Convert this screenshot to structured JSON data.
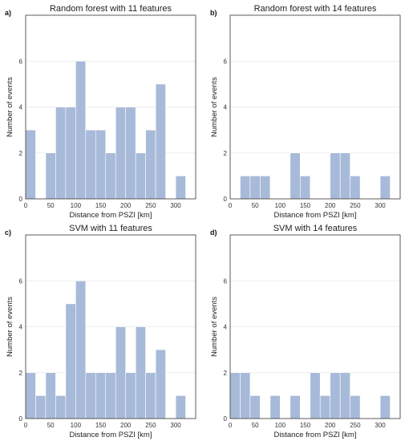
{
  "chart_data": [
    {
      "type": "bar",
      "panel_label": "a)",
      "title": "Random forest with 11 features",
      "xlabel": "Distance from PSZI [km]",
      "ylabel": "Number of events",
      "bin_edges": [
        0,
        20,
        40,
        60,
        80,
        100,
        120,
        140,
        160,
        180,
        200,
        220,
        240,
        260,
        280,
        300,
        320,
        340
      ],
      "values": [
        3,
        0,
        2,
        4,
        4,
        6,
        3,
        3,
        2,
        4,
        4,
        2,
        3,
        5,
        0,
        1,
        0
      ],
      "xlim": [
        0,
        340
      ],
      "ylim": [
        0,
        8
      ],
      "xticks": [
        0,
        50,
        100,
        150,
        200,
        250,
        300
      ],
      "yticks": [
        0,
        2,
        4,
        6
      ],
      "grid": "horizontal",
      "bar_color": "#a8bad9"
    },
    {
      "type": "bar",
      "panel_label": "b)",
      "title": "Random forest with 14 features",
      "xlabel": "Distance from PSZI [km]",
      "ylabel": "Number of events",
      "bin_edges": [
        0,
        20,
        40,
        60,
        80,
        100,
        120,
        140,
        160,
        180,
        200,
        220,
        240,
        260,
        280,
        300,
        320,
        340
      ],
      "values": [
        0,
        1,
        1,
        1,
        0,
        0,
        2,
        1,
        0,
        0,
        2,
        2,
        1,
        0,
        0,
        1,
        0
      ],
      "xlim": [
        0,
        340
      ],
      "ylim": [
        0,
        8
      ],
      "xticks": [
        0,
        50,
        100,
        150,
        200,
        250,
        300
      ],
      "yticks": [
        0,
        2,
        4,
        6
      ],
      "grid": "horizontal",
      "bar_color": "#a8bad9"
    },
    {
      "type": "bar",
      "panel_label": "c)",
      "title": "SVM with 11 features",
      "xlabel": "Distance from PSZI [km]",
      "ylabel": "Number of events",
      "bin_edges": [
        0,
        20,
        40,
        60,
        80,
        100,
        120,
        140,
        160,
        180,
        200,
        220,
        240,
        260,
        280,
        300,
        320,
        340
      ],
      "values": [
        2,
        1,
        2,
        1,
        5,
        6,
        2,
        2,
        2,
        4,
        2,
        4,
        2,
        3,
        0,
        1,
        0
      ],
      "xlim": [
        0,
        340
      ],
      "ylim": [
        0,
        8
      ],
      "xticks": [
        0,
        50,
        100,
        150,
        200,
        250,
        300
      ],
      "yticks": [
        0,
        2,
        4,
        6
      ],
      "grid": "horizontal",
      "bar_color": "#a8bad9"
    },
    {
      "type": "bar",
      "panel_label": "d)",
      "title": "SVM with 14 features",
      "xlabel": "Distance from PSZI [km]",
      "ylabel": "Number of events",
      "bin_edges": [
        0,
        20,
        40,
        60,
        80,
        100,
        120,
        140,
        160,
        180,
        200,
        220,
        240,
        260,
        280,
        300,
        320,
        340
      ],
      "values": [
        2,
        2,
        1,
        0,
        1,
        0,
        1,
        0,
        2,
        1,
        2,
        2,
        1,
        0,
        0,
        1,
        0
      ],
      "xlim": [
        0,
        340
      ],
      "ylim": [
        0,
        8
      ],
      "xticks": [
        0,
        50,
        100,
        150,
        200,
        250,
        300
      ],
      "yticks": [
        0,
        2,
        4,
        6
      ],
      "grid": "horizontal",
      "bar_color": "#a8bad9"
    }
  ]
}
